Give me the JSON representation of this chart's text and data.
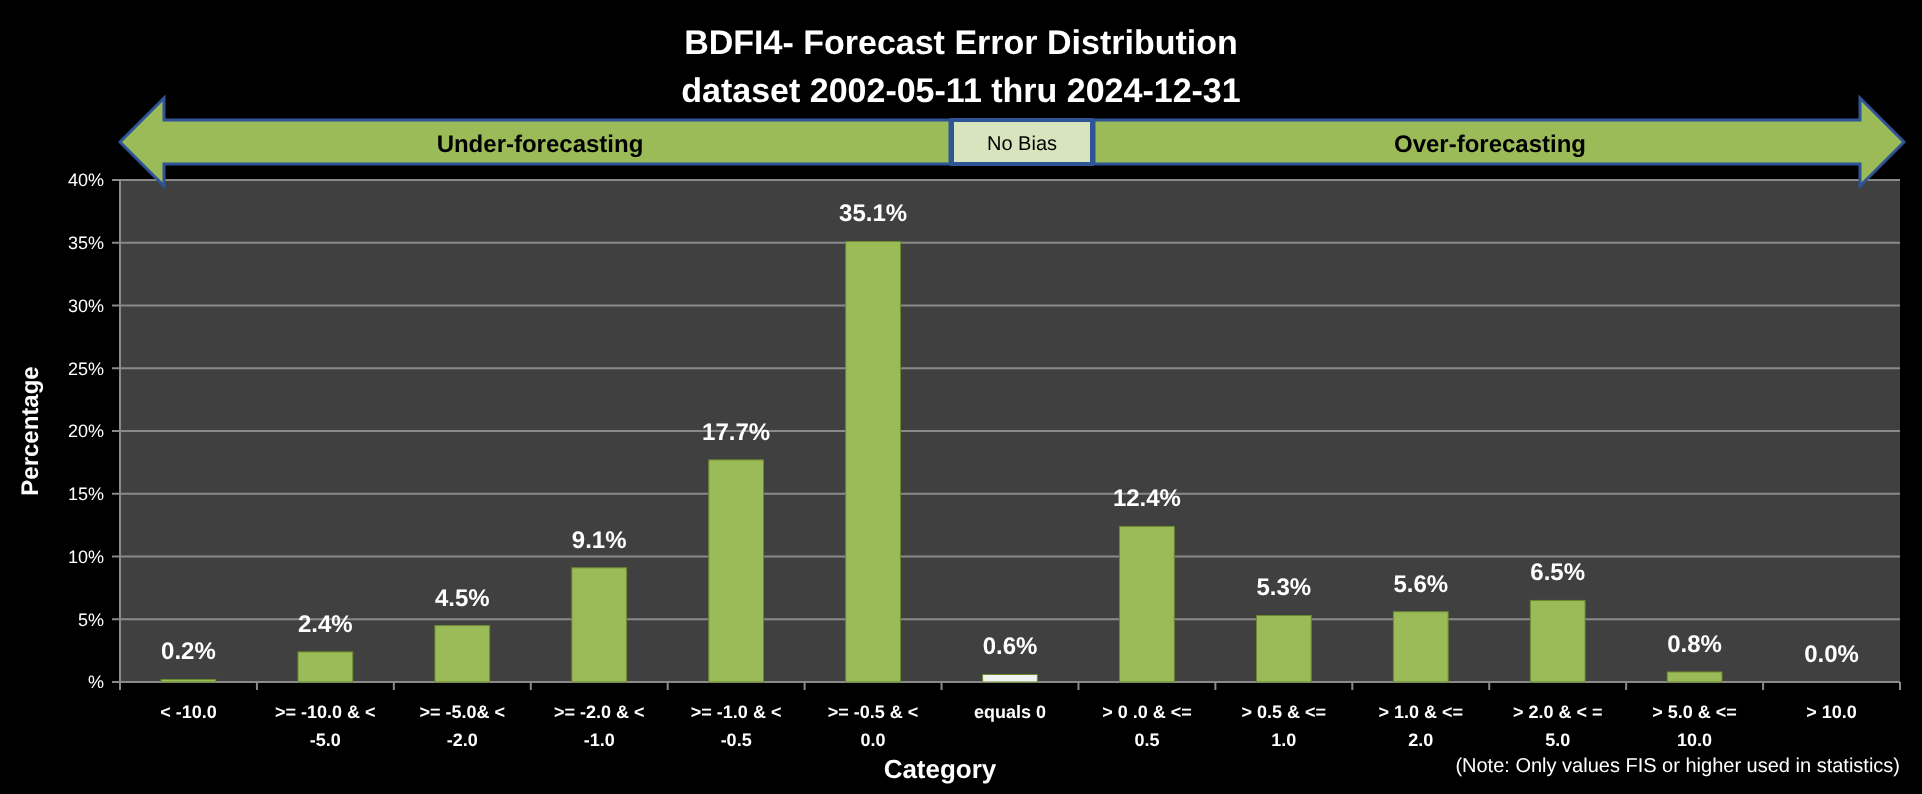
{
  "chart_data": {
    "type": "bar",
    "title": "BDFI4- Forecast Error Distribution",
    "subtitle": "dataset 2002-05-11  thru 2024-12-31",
    "xlabel": "Category",
    "ylabel": "Percentage",
    "categories": [
      "< -10.0",
      ">= -10.0 & < -5.0",
      ">= -5.0& < -2.0",
      ">= -2.0 & < -1.0",
      ">= -1.0 & < -0.5",
      ">= -0.5 & < 0.0",
      "equals 0",
      "> 0 .0 & <= 0.5",
      "> 0.5 & <= 1.0",
      "> 1.0 & <= 2.0",
      "> 2.0 & < = 5.0",
      "> 5.0 & <= 10.0",
      "> 10.0"
    ],
    "values": [
      0.2,
      2.4,
      4.5,
      9.1,
      17.7,
      35.1,
      0.6,
      12.4,
      5.3,
      5.6,
      6.5,
      0.8,
      0.0
    ],
    "colors": [
      "#9bbb59",
      "#9bbb59",
      "#9bbb59",
      "#9bbb59",
      "#9bbb59",
      "#9bbb59",
      "#f2f2f2",
      "#9bbb59",
      "#9bbb59",
      "#9bbb59",
      "#9bbb59",
      "#9bbb59",
      "#9bbb59"
    ],
    "value_labels": [
      "0.2%",
      "2.4%",
      "4.5%",
      "9.1%",
      "17.7%",
      "35.1%",
      "0.6%",
      "12.4%",
      "5.3%",
      "5.6%",
      "6.5%",
      "0.8%",
      "0.0%"
    ],
    "ylim": [
      0,
      40
    ],
    "yticks": [
      {
        "value": 0,
        "label": "%"
      },
      {
        "value": 5,
        "label": "5%"
      },
      {
        "value": 10,
        "label": "10%"
      },
      {
        "value": 15,
        "label": "15%"
      },
      {
        "value": 20,
        "label": "20%"
      },
      {
        "value": 25,
        "label": "25%"
      },
      {
        "value": 30,
        "label": "30%"
      },
      {
        "value": 35,
        "label": "35%"
      },
      {
        "value": 40,
        "label": "40%"
      }
    ],
    "grid": "y",
    "annotations": [
      "Under-forecasting",
      "No Bias",
      "Over-forecasting",
      "(Note: Only values FIS or higher used in statistics)"
    ]
  }
}
